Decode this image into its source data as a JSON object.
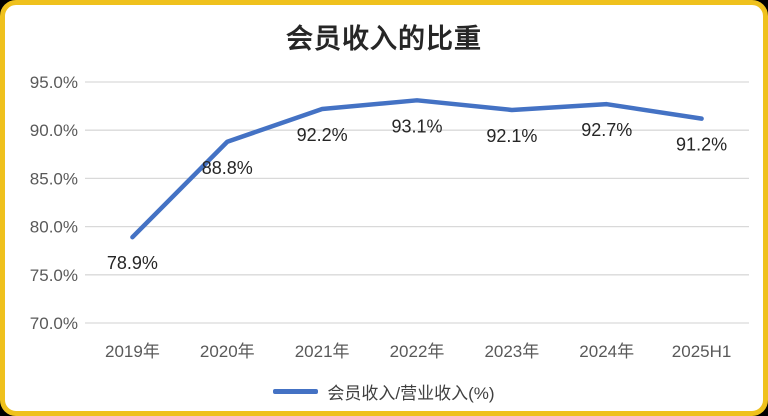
{
  "theme": {
    "page_background": "#000000",
    "card_background": "#ffffff",
    "border_color": "#efc11d"
  },
  "chart_data": {
    "type": "line",
    "title": "会员收入的比重",
    "categories": [
      "2019年",
      "2020年",
      "2021年",
      "2022年",
      "2023年",
      "2024年",
      "2025H1"
    ],
    "series": [
      {
        "name": "会员收入/营业收入(%)",
        "values": [
          78.9,
          88.8,
          92.2,
          93.1,
          92.1,
          92.7,
          91.2
        ]
      }
    ],
    "data_labels": [
      "78.9%",
      "88.8%",
      "92.2%",
      "93.1%",
      "92.1%",
      "92.7%",
      "91.2%"
    ],
    "y_ticks": [
      {
        "value": 95,
        "label": "95.0%"
      },
      {
        "value": 90,
        "label": "90.0%"
      },
      {
        "value": 85,
        "label": "85.0%"
      },
      {
        "value": 80,
        "label": "80.0%"
      },
      {
        "value": 75,
        "label": "75.0%"
      },
      {
        "value": 70,
        "label": "70.0%"
      }
    ],
    "ylim": [
      70,
      95
    ],
    "xlabel": "",
    "ylabel": "",
    "grid": true,
    "legend_position": "bottom",
    "colors": {
      "line": "#4472C4",
      "grid": "#D9D9D9",
      "axis_text": "#595959",
      "data_label": "#262626",
      "title": "#262626",
      "legend_text": "#404040"
    }
  }
}
